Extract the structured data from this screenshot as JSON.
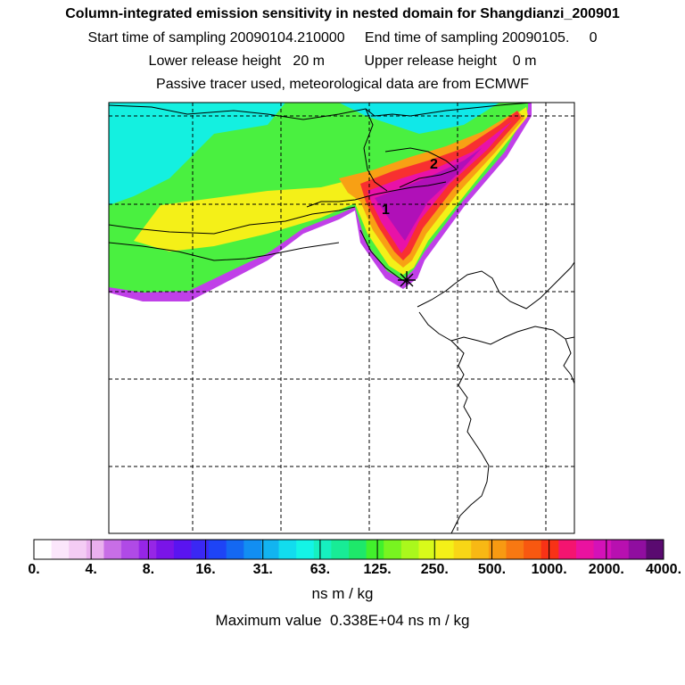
{
  "header": {
    "title": "Column-integrated emission sensitivity in nested domain for Shangdianzi_200901",
    "sampling_line": "Start time of sampling 20090104.210000     End time of sampling 20090105.     0",
    "release_line": "Lower release height   20 m          Upper release height    0 m",
    "tracer_line": "Passive tracer used, meteorological data are from ECMWF"
  },
  "map": {
    "track_labels": [
      "1",
      "2"
    ],
    "receptor_marker": "asterisk-marker",
    "grid": true
  },
  "colorbar": {
    "tick_labels": [
      "0.",
      "4.",
      "8.",
      "16.",
      "31.",
      "63.",
      "125.",
      "250.",
      "500.",
      "1000.",
      "2000.",
      "4000."
    ],
    "colors": [
      "#ffffff",
      "#fbe6fb",
      "#f4ccf4",
      "#eab0ee",
      "#c86ee6",
      "#b04ae6",
      "#9626e6",
      "#7a14e8",
      "#5a14f0",
      "#3a28f4",
      "#1e44f6",
      "#1468f2",
      "#128ef2",
      "#12b4f0",
      "#12dcee",
      "#14f4e6",
      "#16f0c0",
      "#18ec96",
      "#1ee86a",
      "#42f02c",
      "#78f420",
      "#aaf81c",
      "#d8fa1a",
      "#f4f018",
      "#f8d616",
      "#f8b814",
      "#f89a12",
      "#f87812",
      "#f85810",
      "#f83216",
      "#f41470",
      "#ea12a0",
      "#d412b8",
      "#b810b0",
      "#900ea0",
      "#5a0a70"
    ],
    "units": "ns m / kg",
    "max_value_line": "Maximum value  0.338E+04 ns m / kg"
  }
}
